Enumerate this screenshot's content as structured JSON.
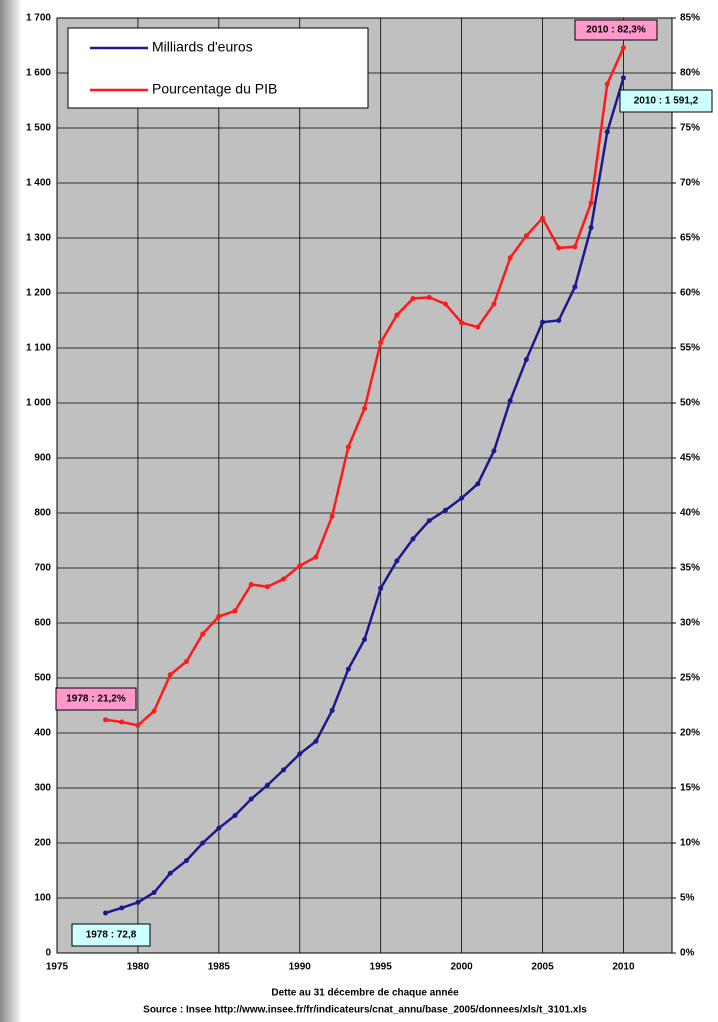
{
  "chart_data": {
    "type": "line",
    "xlabel": "Dette au 31 décembre de chaque année",
    "source": "Source : Insee http://www.insee.fr/fr/indicateurs/cnat_annu/base_2005/donnees/xls/t_3101.xls",
    "x": [
      1978,
      1979,
      1980,
      1981,
      1982,
      1983,
      1984,
      1985,
      1986,
      1987,
      1988,
      1989,
      1990,
      1991,
      1992,
      1993,
      1994,
      1995,
      1996,
      1997,
      1998,
      1999,
      2000,
      2001,
      2002,
      2003,
      2004,
      2005,
      2006,
      2007,
      2008,
      2009,
      2010
    ],
    "series": [
      {
        "name": "Milliards d'euros",
        "color": "#1a1a8c",
        "values": [
          72.8,
          82,
          92,
          110,
          145,
          168,
          200,
          227,
          250,
          280,
          305,
          333,
          362,
          385,
          441,
          516,
          570,
          663,
          713,
          753,
          786,
          805,
          827,
          853,
          913,
          1004,
          1079,
          1147,
          1150,
          1211,
          1319,
          1493,
          1591.2
        ]
      },
      {
        "name": "Pourcentage du PIB",
        "color": "#ff1a1a",
        "axis": "y2",
        "values": [
          21.2,
          21.0,
          20.7,
          22.0,
          25.3,
          26.5,
          29.0,
          30.6,
          31.1,
          33.5,
          33.3,
          34.0,
          35.2,
          36.0,
          39.7,
          46.0,
          49.5,
          55.5,
          58.0,
          59.5,
          59.6,
          59.0,
          57.3,
          56.9,
          59.0,
          63.2,
          65.2,
          66.8,
          64.1,
          64.2,
          68.2,
          79.0,
          82.3
        ]
      }
    ],
    "annotations": [
      "2010 : 82,3%",
      "2010 : 1 591,2",
      "1978 : 21,2%",
      "1978 : 72,8"
    ],
    "xlim": [
      1975,
      2013
    ],
    "xticks": [
      1975,
      1980,
      1985,
      1990,
      1995,
      2000,
      2005,
      2010
    ],
    "ylim": [
      0,
      1700
    ],
    "yticks": [
      0,
      100,
      200,
      300,
      400,
      500,
      600,
      700,
      800,
      900,
      {
        "value": 1000,
        "label": "1 000"
      },
      {
        "value": 1100,
        "label": "1 100"
      },
      {
        "value": 1200,
        "label": "1 200"
      },
      {
        "value": 1300,
        "label": "1 300"
      },
      {
        "value": 1400,
        "label": "1 400"
      },
      {
        "value": 1500,
        "label": "1 500"
      },
      {
        "value": 1600,
        "label": "1 600"
      },
      {
        "value": 1700,
        "label": "1 700"
      }
    ],
    "y2lim": [
      0,
      85
    ],
    "y2ticks": [
      {
        "value": 0,
        "label": "0%"
      },
      {
        "value": 5,
        "label": "5%"
      },
      {
        "value": 10,
        "label": "10%"
      },
      {
        "value": 15,
        "label": "15%"
      },
      {
        "value": 20,
        "label": "20%"
      },
      {
        "value": 25,
        "label": "25%"
      },
      {
        "value": 30,
        "label": "30%"
      },
      {
        "value": 35,
        "label": "35%"
      },
      {
        "value": 40,
        "label": "40%"
      },
      {
        "value": 45,
        "label": "45%"
      },
      {
        "value": 50,
        "label": "50%"
      },
      {
        "value": 55,
        "label": "55%"
      },
      {
        "value": 60,
        "label": "60%"
      },
      {
        "value": 65,
        "label": "65%"
      },
      {
        "value": 70,
        "label": "70%"
      },
      {
        "value": 75,
        "label": "75%"
      },
      {
        "value": 80,
        "label": "80%"
      },
      {
        "value": 85,
        "label": "85%"
      }
    ],
    "grid": true
  }
}
